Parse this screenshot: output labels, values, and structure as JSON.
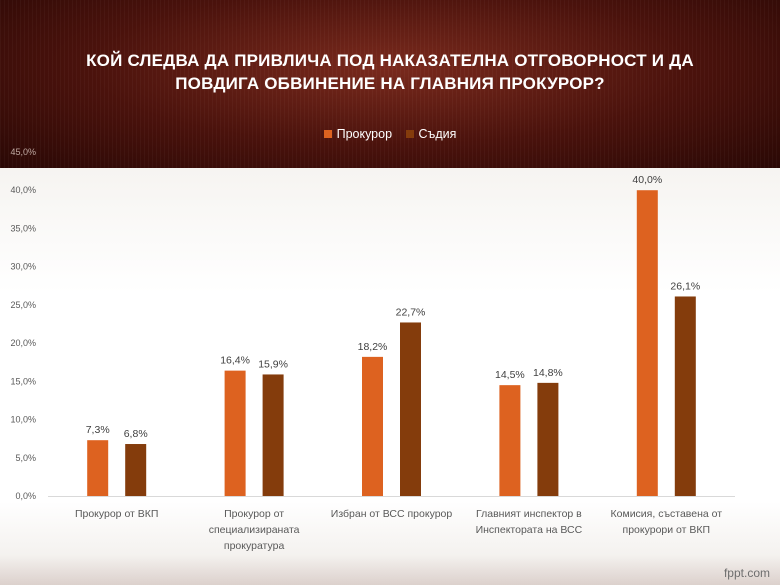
{
  "title_line1": "КОЙ СЛЕДВА ДА ПРИВЛИЧА ПОД НАКАЗАТЕЛНА ОТГОВОРНОСТ И ДА",
  "title_line2": "ПОВДИГА ОБВИНЕНИЕ НА ГЛАВНИЯ ПРОКУРОР?",
  "footer": "fppt.com",
  "colors": {
    "series1": "#dd6220",
    "series2": "#843c0c",
    "top_band": "#5a1a12"
  },
  "chart_data": {
    "type": "bar",
    "title": "КОЙ СЛЕДВА ДА ПРИВЛИЧА ПОД НАКАЗАТЕЛНА ОТГОВОРНОСТ И ДА ПОВДИГА ОБВИНЕНИЕ НА ГЛАВНИЯ ПРОКУРОР?",
    "categories": [
      [
        "Прокурор  от ВКП"
      ],
      [
        "Прокурор  от",
        "специализираната",
        "прокуратура"
      ],
      [
        "Избран от ВСС прокурор"
      ],
      [
        "Главният инспектор в",
        "Инспектората на ВСС"
      ],
      [
        "Комисия, съставена от",
        "прокурори  от ВКП"
      ]
    ],
    "series": [
      {
        "name": "Прокурор",
        "color": "#dd6220",
        "values": [
          7.3,
          16.4,
          18.2,
          14.5,
          40.0
        ],
        "labels": [
          "7,3%",
          "16,4%",
          "18,2%",
          "14,5%",
          "40,0%"
        ]
      },
      {
        "name": "Съдия",
        "color": "#843c0c",
        "values": [
          6.8,
          15.9,
          22.7,
          14.8,
          26.1
        ],
        "labels": [
          "6,8%",
          "15,9%",
          "22,7%",
          "14,8%",
          "26,1%"
        ]
      }
    ],
    "yticks": [
      "0,0%",
      "5,0%",
      "10,0%",
      "15,0%",
      "20,0%",
      "25,0%",
      "30,0%",
      "35,0%",
      "40,0%",
      "45,0%"
    ],
    "ylim": [
      0,
      45
    ],
    "legend_position": "top",
    "grid": false
  }
}
